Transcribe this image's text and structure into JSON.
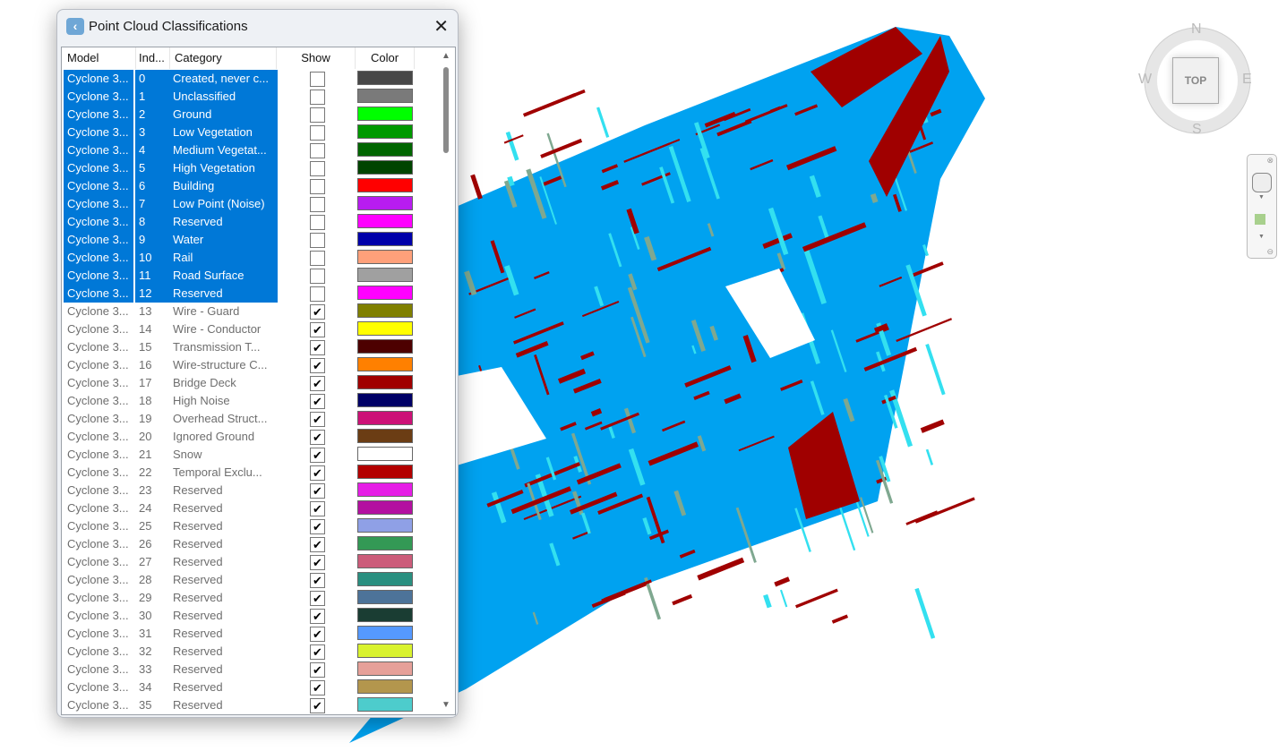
{
  "dialog": {
    "title": "Point Cloud Classifications",
    "close_icon": "close-icon",
    "app_icon": "point-cloud-icon"
  },
  "columns": {
    "model": "Model",
    "index": "Ind...",
    "category": "Category",
    "show": "Show",
    "color": "Color"
  },
  "rows": [
    [
      "Cyclone 3...",
      "0",
      "Created, never c...",
      false,
      "#474747",
      true
    ],
    [
      "Cyclone 3...",
      "1",
      "Unclassified",
      false,
      "#7a7a7a",
      true
    ],
    [
      "Cyclone 3...",
      "2",
      "Ground",
      false,
      "#00ff00",
      true
    ],
    [
      "Cyclone 3...",
      "3",
      "Low Vegetation",
      false,
      "#009900",
      true
    ],
    [
      "Cyclone 3...",
      "4",
      "Medium Vegetat...",
      false,
      "#006600",
      true
    ],
    [
      "Cyclone 3...",
      "5",
      "High Vegetation",
      false,
      "#004400",
      true
    ],
    [
      "Cyclone 3...",
      "6",
      "Building",
      false,
      "#ff0000",
      true
    ],
    [
      "Cyclone 3...",
      "7",
      "Low Point (Noise)",
      false,
      "#b81cf0",
      true
    ],
    [
      "Cyclone 3...",
      "8",
      "Reserved",
      false,
      "#ff00ff",
      true
    ],
    [
      "Cyclone 3...",
      "9",
      "Water",
      false,
      "#0000aa",
      true
    ],
    [
      "Cyclone 3...",
      "10",
      "Rail",
      false,
      "#ffa07a",
      true
    ],
    [
      "Cyclone 3...",
      "11",
      "Road Surface",
      false,
      "#a0a0a0",
      true
    ],
    [
      "Cyclone 3...",
      "12",
      "Reserved",
      false,
      "#ff00ff",
      true
    ],
    [
      "Cyclone 3...",
      "13",
      "Wire - Guard",
      true,
      "#808000",
      false
    ],
    [
      "Cyclone 3...",
      "14",
      "Wire - Conductor",
      true,
      "#ffff00",
      false
    ],
    [
      "Cyclone 3...",
      "15",
      "Transmission T...",
      true,
      "#4d0000",
      false
    ],
    [
      "Cyclone 3...",
      "16",
      "Wire-structure C...",
      true,
      "#ff8000",
      false
    ],
    [
      "Cyclone 3...",
      "17",
      "Bridge Deck",
      true,
      "#a00000",
      false
    ],
    [
      "Cyclone 3...",
      "18",
      "High Noise",
      true,
      "#000066",
      false
    ],
    [
      "Cyclone 3...",
      "19",
      "Overhead Struct...",
      true,
      "#cc1177",
      false
    ],
    [
      "Cyclone 3...",
      "20",
      "Ignored Ground",
      true,
      "#6b3d14",
      false
    ],
    [
      "Cyclone 3...",
      "21",
      "Snow",
      true,
      "#ffffff",
      false
    ],
    [
      "Cyclone 3...",
      "22",
      "Temporal Exclu...",
      true,
      "#b30000",
      false
    ],
    [
      "Cyclone 3...",
      "23",
      "Reserved",
      true,
      "#e61ee6",
      false
    ],
    [
      "Cyclone 3...",
      "24",
      "Reserved",
      true,
      "#b310a0",
      false
    ],
    [
      "Cyclone 3...",
      "25",
      "Reserved",
      true,
      "#8fa0e6",
      false
    ],
    [
      "Cyclone 3...",
      "26",
      "Reserved",
      true,
      "#339955",
      false
    ],
    [
      "Cyclone 3...",
      "27",
      "Reserved",
      true,
      "#cc5c7a",
      false
    ],
    [
      "Cyclone 3...",
      "28",
      "Reserved",
      true,
      "#2a8f80",
      false
    ],
    [
      "Cyclone 3...",
      "29",
      "Reserved",
      true,
      "#4d7399",
      false
    ],
    [
      "Cyclone 3...",
      "30",
      "Reserved",
      true,
      "#1a3d33",
      false
    ],
    [
      "Cyclone 3...",
      "31",
      "Reserved",
      true,
      "#5599ff",
      false
    ],
    [
      "Cyclone 3...",
      "32",
      "Reserved",
      true,
      "#d9f22e",
      false
    ],
    [
      "Cyclone 3...",
      "33",
      "Reserved",
      true,
      "#e6a099",
      false
    ],
    [
      "Cyclone 3...",
      "34",
      "Reserved",
      true,
      "#b3964d",
      false
    ],
    [
      "Cyclone 3...",
      "35",
      "Reserved",
      true,
      "#4dcccc",
      false
    ]
  ],
  "viewcube": {
    "top": "TOP",
    "n": "N",
    "s": "S",
    "e": "E",
    "w": "W"
  },
  "colors": {
    "selection": "#0078d7",
    "cloud_blue": "#00a2f0",
    "cloud_red": "#a00000",
    "cloud_cyan": "#33e0f0"
  }
}
